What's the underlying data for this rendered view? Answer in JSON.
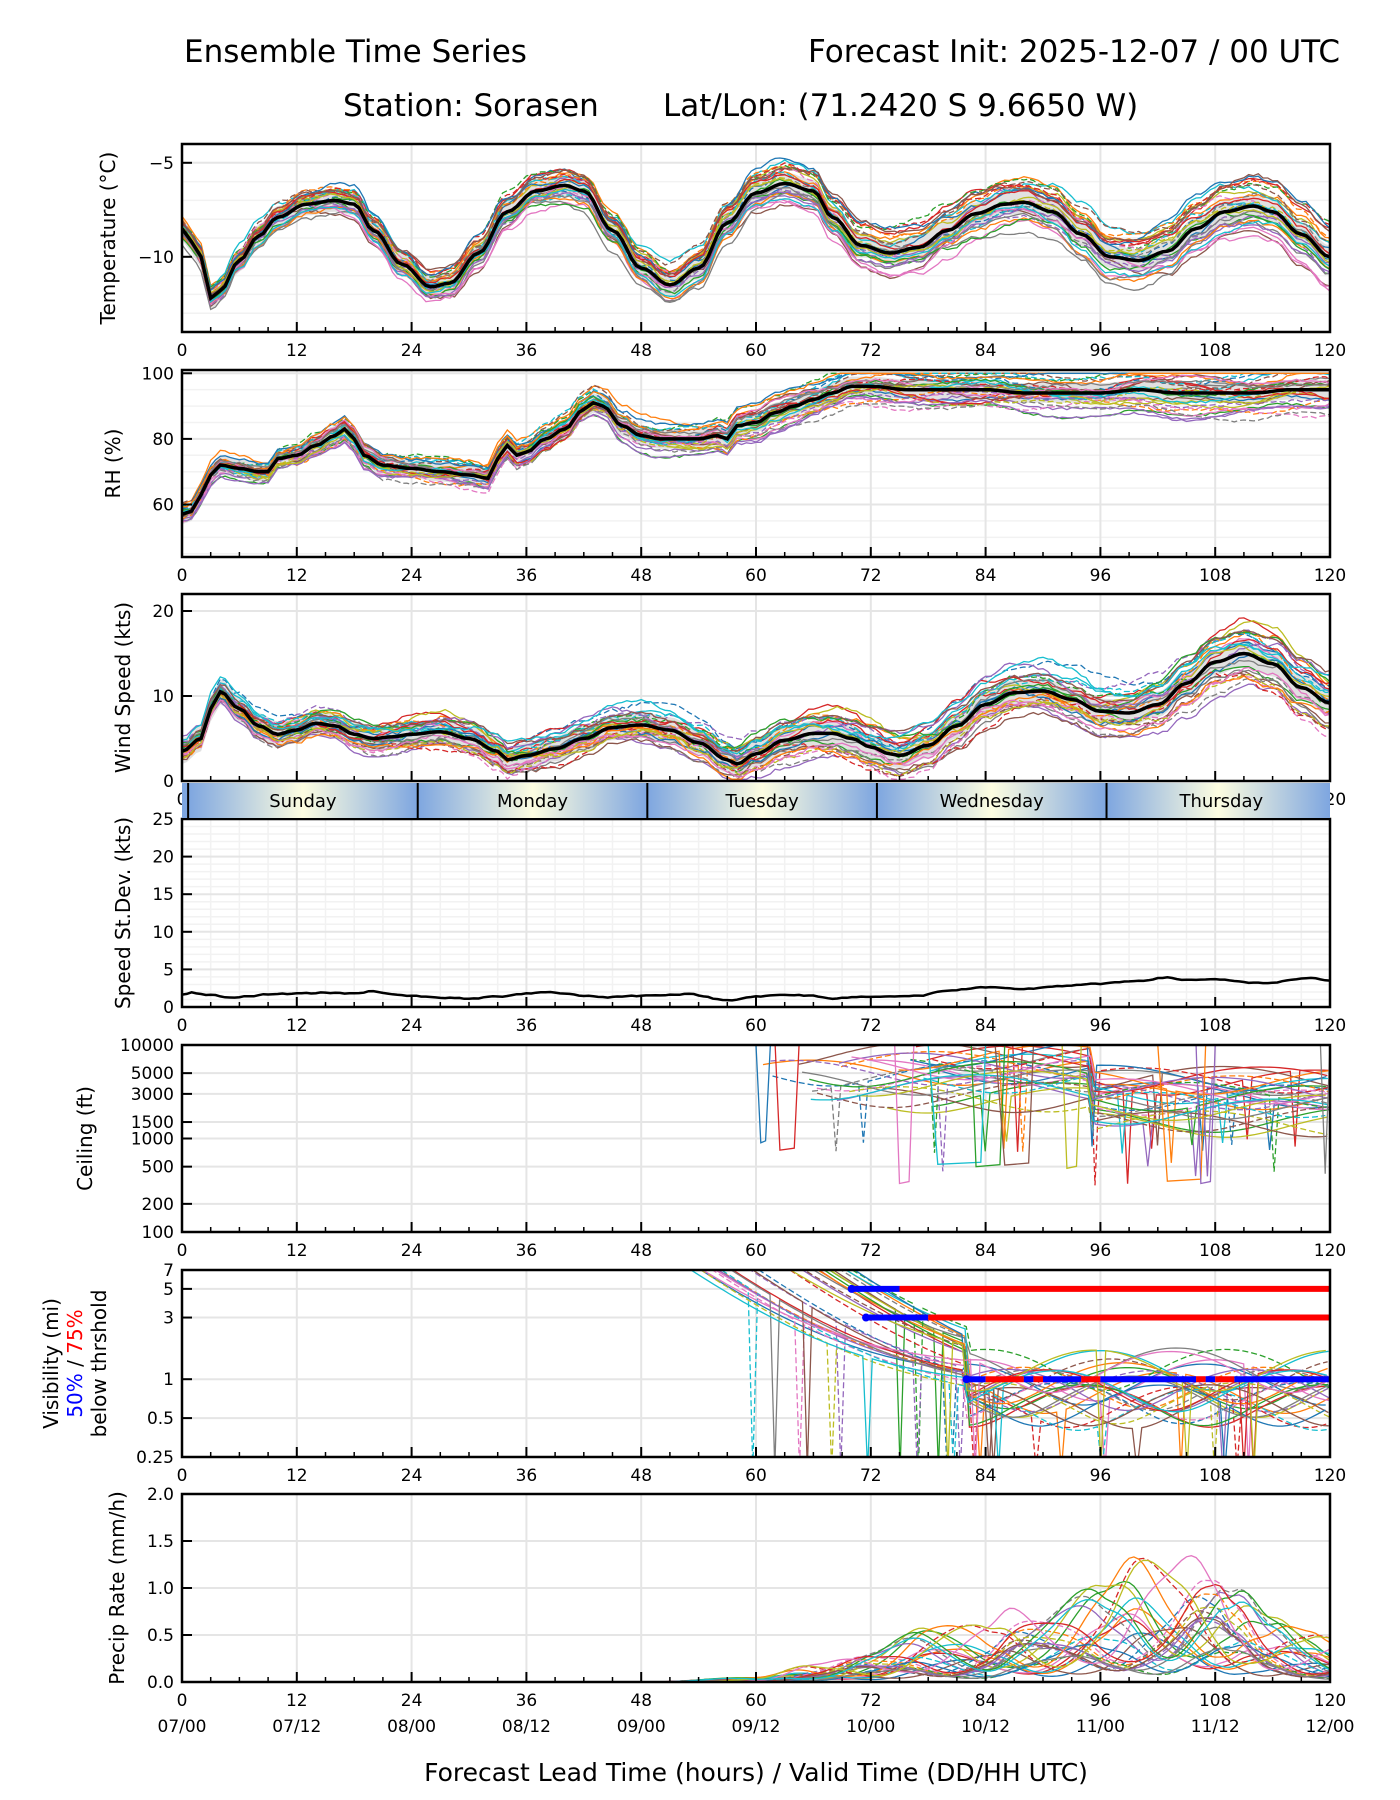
{
  "header": {
    "title_left": "Ensemble Time Series",
    "title_right": "Forecast Init: 2025-12-07 / 00 UTC",
    "station": "Station: Sorasen",
    "latlon": "Lat/Lon: (71.2420 S 9.6650 W)"
  },
  "colors": {
    "mean": "#000000",
    "spread": "#d9d9d9",
    "grid": "#e5e5e5",
    "grid_minor": "#f2f2f2",
    "threshold_50": "#0000ff",
    "threshold_75": "#ff0000",
    "day_edge": "#7ea6e0",
    "day_center": "#fdfde0",
    "members": [
      "#1f77b4",
      "#ff7f0e",
      "#2ca02c",
      "#d62728",
      "#9467bd",
      "#8c564b",
      "#e377c2",
      "#7f7f7f",
      "#bcbd22",
      "#17becf"
    ]
  },
  "chart_data": [
    {
      "type": "line",
      "id": "temperature",
      "ylabel": "Temperature (°C)",
      "ylim": [
        -14,
        -4
      ],
      "yticks": [
        -10,
        -5
      ],
      "ytick_labels": [
        "−10",
        "−5"
      ],
      "grid": true,
      "xlim": [
        0,
        120
      ],
      "xticks": [
        0,
        12,
        24,
        36,
        48,
        60,
        72,
        84,
        96,
        108,
        120
      ],
      "ensemble_members": 30,
      "mean": {
        "x": [
          0,
          1,
          2,
          3,
          4,
          6,
          8,
          10,
          13,
          16,
          18,
          20,
          23,
          26,
          28,
          31,
          34,
          37,
          40,
          42,
          45,
          48,
          51,
          54,
          57,
          60,
          63,
          66,
          68,
          71,
          74,
          77,
          80,
          83,
          86,
          88,
          91,
          94,
          97,
          100,
          103,
          106,
          109,
          112,
          114,
          117,
          120
        ],
        "y": [
          -8.5,
          -9.2,
          -10.0,
          -12.2,
          -11.8,
          -10.2,
          -8.9,
          -7.9,
          -7.2,
          -7.0,
          -7.2,
          -8.6,
          -10.4,
          -11.6,
          -11.4,
          -9.8,
          -7.6,
          -6.5,
          -6.2,
          -6.5,
          -8.6,
          -10.6,
          -11.5,
          -10.6,
          -8.2,
          -6.6,
          -6.1,
          -6.5,
          -7.9,
          -9.4,
          -9.8,
          -9.5,
          -8.6,
          -7.7,
          -7.2,
          -7.1,
          -7.6,
          -8.8,
          -10.0,
          -10.2,
          -9.7,
          -8.5,
          -7.6,
          -7.3,
          -7.6,
          -8.8,
          -10.0
        ]
      },
      "spread": 0.6
    },
    {
      "type": "line",
      "id": "rh",
      "ylabel": "RH (%)",
      "ylim": [
        44,
        101
      ],
      "yticks": [
        60,
        80,
        100
      ],
      "ytick_labels": [
        "60",
        "80",
        "100"
      ],
      "grid": true,
      "xlim": [
        0,
        120
      ],
      "xticks": [
        0,
        12,
        24,
        36,
        48,
        60,
        72,
        84,
        96,
        108,
        120
      ],
      "ensemble_members": 30,
      "mean": {
        "x": [
          0,
          1,
          2,
          3,
          4,
          6,
          8,
          9,
          10,
          12,
          14,
          16,
          17,
          18,
          19,
          21,
          24,
          27,
          30,
          32,
          33,
          34,
          35,
          36,
          38,
          40,
          42,
          43,
          44,
          46,
          48,
          50,
          52,
          54,
          56,
          57,
          58,
          60,
          62,
          64,
          66,
          68,
          70,
          72,
          76,
          80,
          84,
          88,
          92,
          96,
          100,
          104,
          108,
          112,
          116,
          120
        ],
        "y": [
          57,
          58,
          63,
          69,
          72,
          71,
          70,
          70,
          74,
          75,
          78,
          81,
          83,
          80,
          75,
          72,
          71,
          70,
          69,
          68,
          74,
          78,
          75,
          76,
          80,
          83,
          89,
          91,
          90,
          84,
          81,
          80,
          80,
          80,
          81,
          80,
          84,
          85,
          88,
          90,
          92,
          94,
          96,
          96,
          95,
          95,
          95,
          94,
          94,
          94,
          95,
          94,
          94,
          94,
          95,
          95
        ]
      },
      "spread": 3
    },
    {
      "type": "line",
      "id": "wind_speed",
      "ylabel": "Wind Speed (kts)",
      "ylim": [
        0,
        22
      ],
      "yticks": [
        0,
        10,
        20
      ],
      "ytick_labels": [
        "0",
        "10",
        "20"
      ],
      "grid": true,
      "xlim": [
        0,
        120
      ],
      "xticks": [
        0,
        12,
        24,
        36,
        48,
        60,
        72,
        84,
        96,
        108,
        120
      ],
      "ensemble_members": 30,
      "mean": {
        "x": [
          0,
          2,
          3,
          4,
          6,
          8,
          10,
          12,
          14,
          16,
          18,
          20,
          22,
          24,
          27,
          30,
          33,
          34,
          36,
          39,
          42,
          45,
          48,
          51,
          54,
          57,
          58,
          60,
          63,
          66,
          68,
          70,
          72,
          74,
          75,
          78,
          81,
          84,
          87,
          90,
          93,
          96,
          99,
          102,
          105,
          108,
          111,
          114,
          117,
          120
        ],
        "y": [
          3.5,
          5.0,
          8.5,
          10.5,
          8.5,
          6.5,
          5.5,
          6.0,
          6.8,
          6.5,
          5.5,
          5.0,
          5.2,
          5.5,
          5.8,
          5.0,
          3.5,
          2.5,
          3.0,
          3.8,
          5.0,
          6.3,
          6.6,
          6.0,
          4.5,
          2.5,
          2.0,
          3.2,
          4.8,
          5.6,
          5.6,
          5.0,
          4.0,
          3.2,
          3.0,
          4.2,
          6.5,
          9.0,
          10.4,
          10.6,
          9.6,
          8.2,
          8.0,
          9.0,
          11.5,
          14.0,
          15.0,
          13.8,
          11.0,
          9.2
        ]
      },
      "spread": 1.5
    },
    {
      "type": "line",
      "id": "speed_stdev",
      "ylabel": "Speed St.Dev. (kts)",
      "ylim": [
        0,
        25
      ],
      "yticks": [
        0,
        5,
        10,
        15,
        20,
        25
      ],
      "ytick_labels": [
        "0",
        "5",
        "10",
        "15",
        "20",
        "25"
      ],
      "grid": true,
      "xlim": [
        0,
        120
      ],
      "xticks": [
        0,
        12,
        24,
        36,
        48,
        60,
        72,
        84,
        96,
        108,
        120
      ],
      "series": {
        "x": [
          0,
          1,
          3,
          5,
          7,
          9,
          12,
          15,
          18,
          20,
          22,
          24,
          26,
          28,
          30,
          33,
          36,
          38,
          40,
          42,
          44,
          48,
          50,
          53,
          57,
          60,
          63,
          66,
          68,
          70,
          72,
          75,
          77,
          80,
          84,
          88,
          92,
          96,
          100,
          103,
          105,
          108,
          112,
          114,
          116,
          118,
          120
        ],
        "y": [
          1.6,
          1.9,
          1.6,
          1.2,
          1.4,
          1.7,
          1.8,
          1.9,
          1.8,
          2.1,
          1.7,
          1.5,
          1.3,
          1.2,
          1.1,
          1.4,
          1.8,
          2.0,
          1.8,
          1.5,
          1.3,
          1.5,
          1.6,
          1.7,
          0.9,
          1.4,
          1.6,
          1.5,
          1.1,
          1.3,
          1.4,
          1.4,
          1.5,
          2.2,
          2.6,
          2.4,
          2.8,
          3.1,
          3.5,
          3.9,
          3.6,
          3.7,
          3.2,
          3.2,
          3.6,
          3.9,
          3.5
        ]
      }
    },
    {
      "type": "line",
      "id": "ceiling",
      "ylabel": "Ceiling (ft)",
      "yscale": "log",
      "ylim": [
        100,
        10000
      ],
      "yticks": [
        100,
        200,
        500,
        1000,
        1500,
        3000,
        5000,
        10000
      ],
      "ytick_labels": [
        "100",
        "200",
        "500",
        "1000",
        "1500",
        "3000",
        "5000",
        "10000"
      ],
      "grid": true,
      "xlim": [
        0,
        120
      ],
      "xticks": [
        0,
        12,
        24,
        36,
        48,
        60,
        72,
        84,
        96,
        108,
        120
      ],
      "data_start_hour": 60,
      "typical_range_ft": [
        2500,
        10000
      ]
    },
    {
      "type": "line",
      "id": "visibility",
      "ylabel": "Visibility (mi)",
      "ylabel_line2_blue": "50%",
      "ylabel_line2_sep": " / ",
      "ylabel_line2_red": "75%",
      "ylabel_line3": "below thrshold",
      "yscale": "log",
      "ylim": [
        0.25,
        7
      ],
      "yticks": [
        0.25,
        0.5,
        1,
        3,
        5,
        7
      ],
      "ytick_labels": [
        "0.25",
        "0.5",
        "1",
        "3",
        "5",
        "7"
      ],
      "grid": true,
      "xlim": [
        0,
        120
      ],
      "xticks": [
        0,
        12,
        24,
        36,
        48,
        60,
        72,
        84,
        96,
        108,
        120
      ],
      "data_start_hour": 52,
      "thresholds": [
        {
          "value": 5,
          "blue_from": 70,
          "red_from": 75,
          "red_to": 120
        },
        {
          "value": 3,
          "blue_from": 71.5,
          "red_from": 78,
          "red_to": 120
        },
        {
          "value": 1,
          "blue_from": 82,
          "segments": [
            {
              "color": "blue",
              "from": 82,
              "to": 84
            },
            {
              "color": "red",
              "from": 84,
              "to": 88
            },
            {
              "color": "blue",
              "from": 88,
              "to": 89
            },
            {
              "color": "red",
              "from": 89,
              "to": 90
            },
            {
              "color": "blue",
              "from": 90,
              "to": 94
            },
            {
              "color": "red",
              "from": 94,
              "to": 96
            },
            {
              "color": "blue",
              "from": 96,
              "to": 106
            },
            {
              "color": "red",
              "from": 106,
              "to": 107
            },
            {
              "color": "blue",
              "from": 107,
              "to": 108
            },
            {
              "color": "red",
              "from": 108,
              "to": 110
            },
            {
              "color": "blue",
              "from": 110,
              "to": 120
            }
          ]
        }
      ]
    },
    {
      "type": "line",
      "id": "precip",
      "ylabel": "Precip Rate (mm/h)",
      "ylim": [
        0,
        2
      ],
      "yticks": [
        0,
        0.5,
        1.0,
        1.5,
        2.0
      ],
      "ytick_labels": [
        "0.0",
        "0.5",
        "1.0",
        "1.5",
        "2.0"
      ],
      "grid": true,
      "xlim": [
        0,
        120
      ],
      "xticks": [
        0,
        12,
        24,
        36,
        48,
        60,
        72,
        84,
        96,
        108,
        120
      ],
      "xtick_labels": [
        "0",
        "12",
        "24",
        "36",
        "48",
        "60",
        "72",
        "84",
        "96",
        "108",
        "120"
      ],
      "xtick_labels2": [
        "07/00",
        "07/12",
        "08/00",
        "08/12",
        "09/00",
        "09/12",
        "10/00",
        "10/12",
        "11/00",
        "11/12",
        "12/00"
      ],
      "xlabel": "Forecast Lead Time (hours) / Valid Time (DD/HH UTC)",
      "max_member_value": 1.45,
      "envelope": {
        "x": [
          48,
          60,
          66,
          72,
          78,
          84,
          87,
          90,
          96,
          100,
          103,
          106,
          108,
          110,
          114,
          118,
          120
        ],
        "y": [
          0.0,
          0.05,
          0.2,
          0.35,
          0.6,
          0.65,
          0.85,
          0.8,
          1.05,
          1.4,
          1.3,
          1.45,
          1.35,
          1.1,
          0.7,
          0.55,
          0.5
        ]
      }
    }
  ],
  "day_band": {
    "boundary_offset_hours": 0.64,
    "days": [
      "Sunday",
      "Monday",
      "Tuesday",
      "Wednesday",
      "Thursday"
    ]
  }
}
